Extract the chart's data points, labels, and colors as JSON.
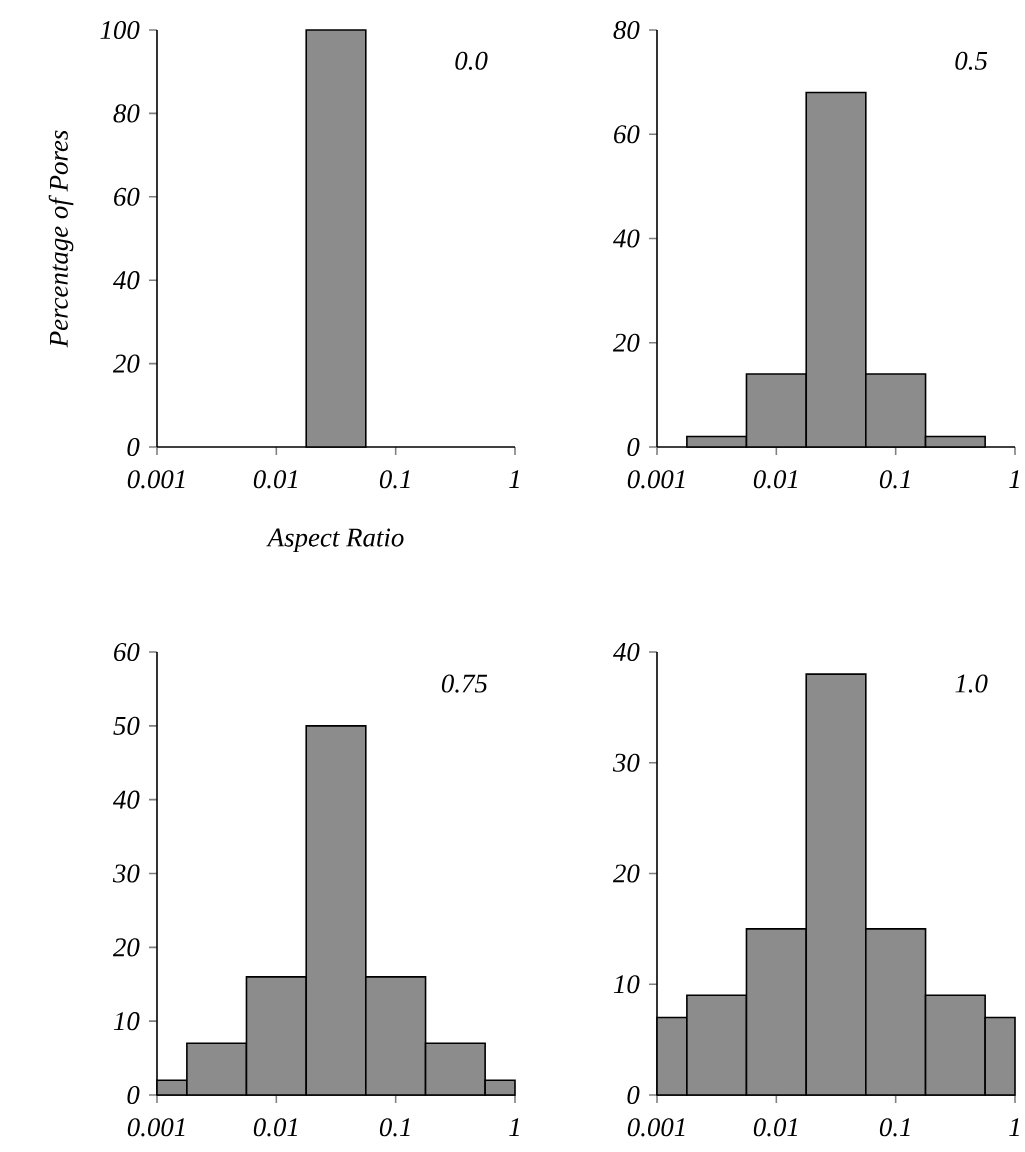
{
  "chart_data": [
    {
      "type": "histogram",
      "ylabel": "Percentage of Pores",
      "xlabel": "Aspect Ratio",
      "annotations": [
        "0.0"
      ],
      "color": "#8c8c8c",
      "log": "x",
      "bins": [
        0.0178,
        0.0562
      ],
      "values": [
        100
      ],
      "xlim": [
        0.001,
        1
      ],
      "xticks": [
        0.001,
        0.01,
        0.1,
        1
      ],
      "ylim": [
        0,
        100
      ],
      "yticks": [
        0,
        20,
        40,
        60,
        80,
        100
      ]
    },
    {
      "type": "histogram",
      "annotations": [
        "0.5"
      ],
      "color": "#8c8c8c",
      "log": "x",
      "bins": [
        0.00178,
        0.00562,
        0.0178,
        0.0562,
        0.178,
        0.562
      ],
      "values": [
        2,
        14,
        68,
        14,
        2
      ],
      "xlim": [
        0.001,
        1
      ],
      "xticks": [
        0.001,
        0.01,
        0.1,
        1
      ],
      "ylim": [
        0,
        80
      ],
      "yticks": [
        0,
        20,
        40,
        60,
        80
      ]
    },
    {
      "type": "histogram",
      "annotations": [
        "0.75"
      ],
      "color": "#8c8c8c",
      "log": "x",
      "bins": [
        0.001,
        0.00178,
        0.00562,
        0.0178,
        0.0562,
        0.178,
        0.562,
        1
      ],
      "values": [
        2,
        7,
        16,
        50,
        16,
        7,
        2
      ],
      "xlim": [
        0.001,
        1
      ],
      "xticks": [
        0.001,
        0.01,
        0.1,
        1
      ],
      "ylim": [
        0,
        60
      ],
      "yticks": [
        0,
        10,
        20,
        30,
        40,
        50,
        60
      ]
    },
    {
      "type": "histogram",
      "annotations": [
        "1.0"
      ],
      "color": "#8c8c8c",
      "log": "x",
      "bins": [
        0.001,
        0.00178,
        0.00562,
        0.0178,
        0.0562,
        0.178,
        0.562,
        1
      ],
      "values": [
        7,
        9,
        15,
        38,
        15,
        9,
        7
      ],
      "xlim": [
        0.001,
        1
      ],
      "xticks": [
        0.001,
        0.01,
        0.1,
        1
      ],
      "ylim": [
        0,
        40
      ],
      "yticks": [
        0,
        10,
        20,
        30,
        40
      ]
    }
  ]
}
